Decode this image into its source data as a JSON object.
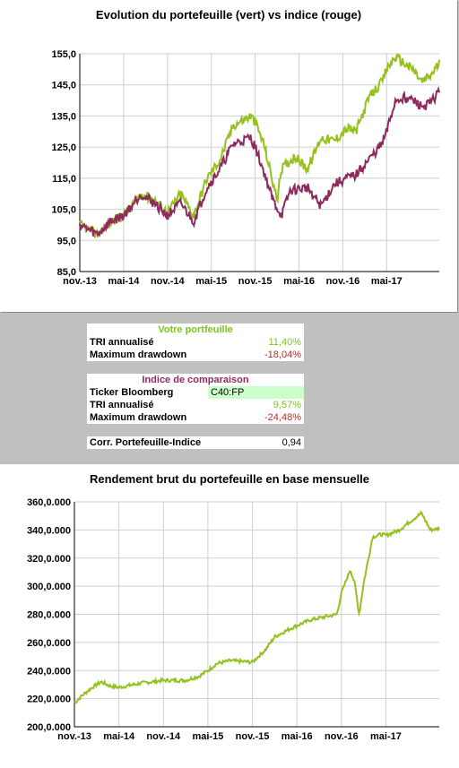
{
  "top_chart": {
    "title": "Evolution du portefeuille (vert) vs indice (rouge)",
    "colors": {
      "portfolio": "#95c11f",
      "index": "#8e2a5e"
    },
    "chart_data": {
      "type": "line",
      "x": [
        "nov.-13",
        "mai-14",
        "nov.-14",
        "mai-15",
        "nov.-15",
        "mai-16",
        "nov.-16",
        "mai-17"
      ],
      "xlabel": "",
      "ylabel": "",
      "yticks": [
        "85,0",
        "95,0",
        "105,0",
        "115,0",
        "125,0",
        "135,0",
        "145,0",
        "155,0"
      ],
      "ylim": [
        85,
        155
      ],
      "grid": true,
      "series": [
        {
          "keypoints": [
            [
              0,
              100
            ],
            [
              0.4,
              97
            ],
            [
              0.7,
              101
            ],
            [
              1,
              103
            ],
            [
              1.4,
              110
            ],
            [
              1.7,
              108
            ],
            [
              2,
              104
            ],
            [
              2.3,
              110
            ],
            [
              2.6,
              103
            ],
            [
              2.9,
              115
            ],
            [
              3.2,
              121
            ],
            [
              3.5,
              132
            ],
            [
              3.9,
              135
            ],
            [
              4,
              133
            ],
            [
              4.2,
              126
            ],
            [
              4.5,
              108
            ],
            [
              4.6,
              118
            ],
            [
              4.9,
              122
            ],
            [
              5.2,
              118
            ],
            [
              5.5,
              128
            ],
            [
              5.8,
              127
            ],
            [
              6.1,
              131
            ],
            [
              6.3,
              130
            ],
            [
              6.6,
              141
            ],
            [
              6.9,
              146
            ],
            [
              7.0,
              150
            ],
            [
              7.2,
              154
            ],
            [
              7.4,
              152
            ],
            [
              7.6,
              150
            ],
            [
              7.8,
              146
            ],
            [
              8.0,
              148
            ],
            [
              8.2,
              152
            ]
          ]
        },
        {
          "keypoints": [
            [
              0,
              100
            ],
            [
              0.4,
              97
            ],
            [
              0.7,
              101
            ],
            [
              1,
              103
            ],
            [
              1.4,
              110
            ],
            [
              1.7,
              107
            ],
            [
              2,
              103
            ],
            [
              2.3,
              107
            ],
            [
              2.6,
              101
            ],
            [
              2.9,
              112
            ],
            [
              3.2,
              118
            ],
            [
              3.5,
              126
            ],
            [
              3.9,
              128
            ],
            [
              4,
              125
            ],
            [
              4.2,
              117
            ],
            [
              4.4,
              108
            ],
            [
              4.6,
              103
            ],
            [
              4.8,
              111
            ],
            [
              5.2,
              112
            ],
            [
              5.5,
              106
            ],
            [
              5.8,
              113
            ],
            [
              6.1,
              115
            ],
            [
              6.3,
              116
            ],
            [
              6.6,
              121
            ],
            [
              6.9,
              126
            ],
            [
              7.0,
              130
            ],
            [
              7.2,
              140
            ],
            [
              7.4,
              141
            ],
            [
              7.6,
              140
            ],
            [
              7.8,
              138
            ],
            [
              8.0,
              139
            ],
            [
              8.2,
              143
            ]
          ]
        }
      ]
    }
  },
  "table": {
    "portfolio_header": "Votre portfeuille",
    "tri_label": "TRI annualisé",
    "tri_value": "11,40%",
    "dd_label": "Maximum drawdown",
    "dd_value": "-18,04%",
    "index_header": "Indice de comparaison",
    "ticker_label": "Ticker Bloomberg",
    "ticker_value": "C40:FP",
    "idx_tri_label": "TRI annualisé",
    "idx_tri_value": "9,57%",
    "idx_dd_label": "Maximum drawdown",
    "idx_dd_value": "-24,48%",
    "corr_label": "Corr. Portefeuille-Indice",
    "corr_value": "0,94"
  },
  "bottom_chart": {
    "title": "Rendement brut du portefeuille en base mensuelle",
    "color": "#95c11f",
    "chart_data": {
      "type": "line",
      "x": [
        "nov.-13",
        "mai-14",
        "nov.-14",
        "mai-15",
        "nov.-15",
        "mai-16",
        "nov.-16",
        "mai-17"
      ],
      "xlabel": "",
      "ylabel": "",
      "yticks": [
        "200,0.000",
        "220,0.000",
        "240,0.000",
        "260,0.000",
        "280,0.000",
        "300,0.000",
        "320,0.000",
        "340,0.000",
        "360,0.000"
      ],
      "ylim": [
        200,
        360
      ],
      "grid": true,
      "series": [
        {
          "keypoints": [
            [
              0,
              217
            ],
            [
              0.2,
              223
            ],
            [
              0.4,
              228
            ],
            [
              0.6,
              232
            ],
            [
              0.8,
              229
            ],
            [
              1.0,
              228
            ],
            [
              1.5,
              231
            ],
            [
              2.0,
              233
            ],
            [
              2.5,
              233
            ],
            [
              2.8,
              236
            ],
            [
              3.0,
              240
            ],
            [
              3.2,
              245
            ],
            [
              3.5,
              247
            ],
            [
              4.0,
              246
            ],
            [
              4.3,
              255
            ],
            [
              4.5,
              264
            ],
            [
              4.8,
              269
            ],
            [
              5.0,
              272
            ],
            [
              5.3,
              276
            ],
            [
              5.6,
              278
            ],
            [
              5.9,
              280
            ],
            [
              6.0,
              295
            ],
            [
              6.2,
              312
            ],
            [
              6.3,
              302
            ],
            [
              6.4,
              280
            ],
            [
              6.5,
              302
            ],
            [
              6.7,
              335
            ],
            [
              6.9,
              337
            ],
            [
              7.0,
              336
            ],
            [
              7.3,
              340
            ],
            [
              7.5,
              345
            ],
            [
              7.8,
              352
            ],
            [
              8.0,
              340
            ],
            [
              8.2,
              341
            ]
          ]
        }
      ]
    }
  }
}
